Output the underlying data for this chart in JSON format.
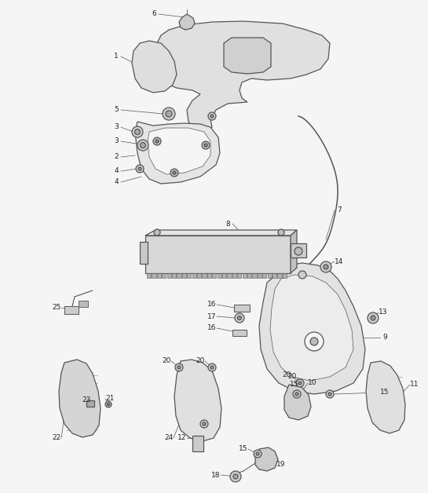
{
  "bg_color": "#f5f5f5",
  "line_color": "#555555",
  "fig_width": 5.45,
  "fig_height": 6.28,
  "dpi": 100
}
